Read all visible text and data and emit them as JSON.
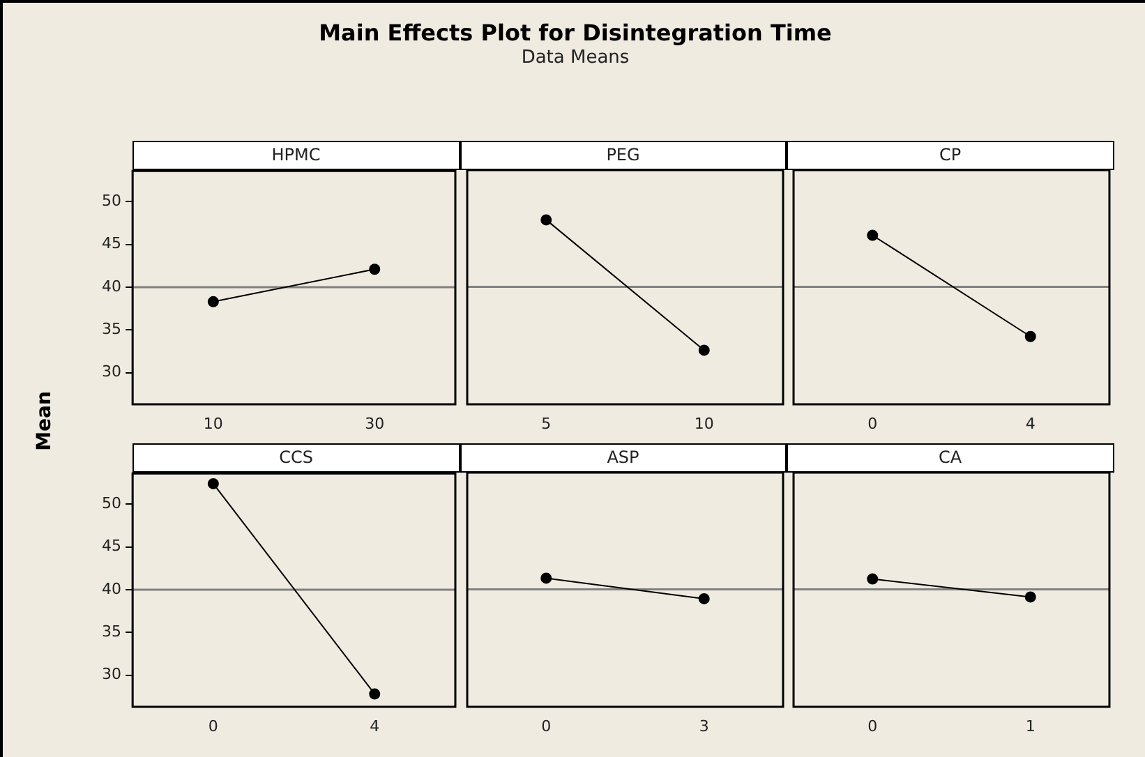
{
  "chart_data": [
    {
      "type": "other",
      "title": "Main Effects Plot for Disintegration Time",
      "subtitle": "Data Means",
      "ylabel": "Mean"
    },
    {
      "type": "line",
      "title": "HPMC",
      "categories": [
        "10",
        "30"
      ],
      "values": [
        38.3,
        42.1
      ],
      "color": "#000000",
      "marker": "circle",
      "ylim": [
        26.3,
        53.6
      ],
      "yticks": [
        30,
        35,
        40,
        45,
        50
      ],
      "ref_lines": [
        {
          "axis": "y",
          "value": 40,
          "color": "#808080"
        }
      ]
    },
    {
      "type": "line",
      "title": "PEG",
      "categories": [
        "5",
        "10"
      ],
      "values": [
        47.8,
        32.6
      ],
      "color": "#000000",
      "marker": "circle",
      "ylim": [
        26.3,
        53.6
      ],
      "yticks": [
        30,
        35,
        40,
        45,
        50
      ],
      "tick_labels": "x",
      "ref_lines": [
        {
          "axis": "y",
          "value": 40,
          "color": "#808080"
        }
      ]
    },
    {
      "type": "line",
      "title": "CP",
      "categories": [
        "0",
        "4"
      ],
      "values": [
        46.0,
        34.2
      ],
      "color": "#000000",
      "marker": "circle",
      "ylim": [
        26.3,
        53.6
      ],
      "yticks": [
        30,
        35,
        40,
        45,
        50
      ],
      "tick_labels": "x",
      "ref_lines": [
        {
          "axis": "y",
          "value": 40,
          "color": "#808080"
        }
      ]
    },
    {
      "type": "line",
      "title": "CCS",
      "categories": [
        "0",
        "4"
      ],
      "values": [
        52.4,
        27.8
      ],
      "color": "#000000",
      "marker": "circle",
      "ylim": [
        26.3,
        53.6
      ],
      "yticks": [
        30,
        35,
        40,
        45,
        50
      ],
      "ref_lines": [
        {
          "axis": "y",
          "value": 40,
          "color": "#808080"
        }
      ]
    },
    {
      "type": "line",
      "title": "ASP",
      "categories": [
        "0",
        "3"
      ],
      "values": [
        41.3,
        38.9
      ],
      "color": "#000000",
      "marker": "circle",
      "ylim": [
        26.3,
        53.6
      ],
      "yticks": [
        30,
        35,
        40,
        45,
        50
      ],
      "tick_labels": "x",
      "ref_lines": [
        {
          "axis": "y",
          "value": 40,
          "color": "#808080"
        }
      ]
    },
    {
      "type": "line",
      "title": "CA",
      "categories": [
        "0",
        "1"
      ],
      "values": [
        41.2,
        39.1
      ],
      "color": "#000000",
      "marker": "circle",
      "ylim": [
        26.3,
        53.6
      ],
      "yticks": [
        30,
        35,
        40,
        45,
        50
      ],
      "tick_labels": "x",
      "ref_lines": [
        {
          "axis": "y",
          "value": 40,
          "color": "#808080"
        }
      ]
    }
  ]
}
